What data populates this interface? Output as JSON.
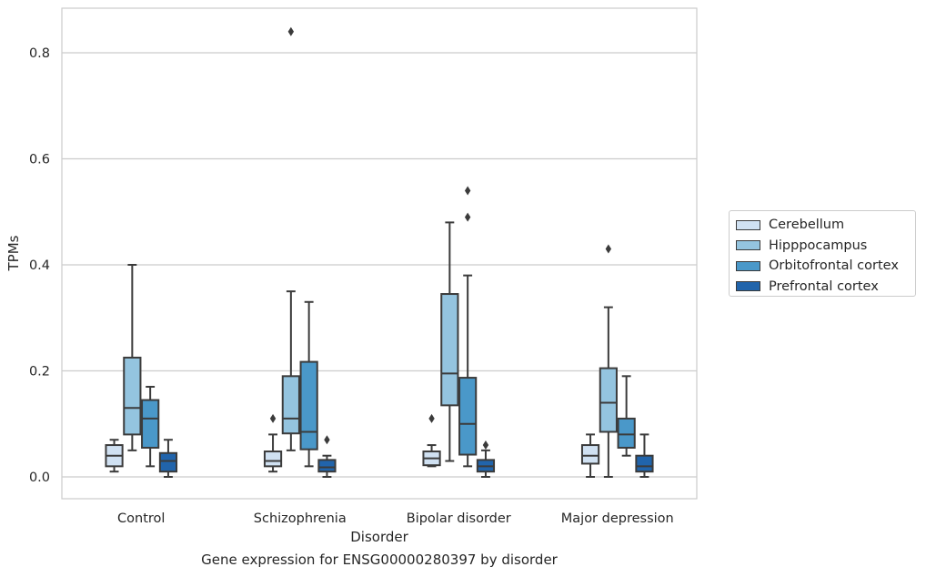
{
  "chart_data": {
    "type": "box",
    "title": "",
    "xlabel": "Disorder",
    "ylabel": "TPMs",
    "caption": "Gene expression for ENSG00000280397 by disorder",
    "ylim": [
      -0.04,
      0.885
    ],
    "yticks": [
      0.0,
      0.2,
      0.4,
      0.6,
      0.8
    ],
    "ytick_labels": [
      "0.0",
      "0.2",
      "0.4",
      "0.6",
      "0.8"
    ],
    "grid": "horizontal",
    "legend_position": "right",
    "categories": [
      "Control",
      "Schizophrenia",
      "Bipolar disorder",
      "Major depression"
    ],
    "series": [
      {
        "name": "Cerebellum",
        "color": "#d0e1f2",
        "boxes": [
          {
            "whisker_low": 0.01,
            "q1": 0.02,
            "median": 0.04,
            "q3": 0.06,
            "whisker_high": 0.07,
            "outliers": []
          },
          {
            "whisker_low": 0.01,
            "q1": 0.02,
            "median": 0.03,
            "q3": 0.048,
            "whisker_high": 0.08,
            "outliers": [
              0.11
            ]
          },
          {
            "whisker_low": 0.02,
            "q1": 0.022,
            "median": 0.035,
            "q3": 0.048,
            "whisker_high": 0.06,
            "outliers": [
              0.11
            ]
          },
          {
            "whisker_low": 0.0,
            "q1": 0.025,
            "median": 0.04,
            "q3": 0.06,
            "whisker_high": 0.08,
            "outliers": []
          }
        ]
      },
      {
        "name": "Hipppocampus",
        "color": "#94c4df",
        "boxes": [
          {
            "whisker_low": 0.05,
            "q1": 0.08,
            "median": 0.13,
            "q3": 0.225,
            "whisker_high": 0.4,
            "outliers": []
          },
          {
            "whisker_low": 0.05,
            "q1": 0.082,
            "median": 0.11,
            "q3": 0.19,
            "whisker_high": 0.35,
            "outliers": [
              0.84
            ]
          },
          {
            "whisker_low": 0.03,
            "q1": 0.135,
            "median": 0.195,
            "q3": 0.345,
            "whisker_high": 0.48,
            "outliers": []
          },
          {
            "whisker_low": 0.0,
            "q1": 0.085,
            "median": 0.14,
            "q3": 0.205,
            "whisker_high": 0.32,
            "outliers": [
              0.43
            ]
          }
        ]
      },
      {
        "name": "Orbitofrontal cortex",
        "color": "#4a98c9",
        "boxes": [
          {
            "whisker_low": 0.02,
            "q1": 0.055,
            "median": 0.11,
            "q3": 0.145,
            "whisker_high": 0.17,
            "outliers": []
          },
          {
            "whisker_low": 0.02,
            "q1": 0.052,
            "median": 0.085,
            "q3": 0.217,
            "whisker_high": 0.33,
            "outliers": []
          },
          {
            "whisker_low": 0.02,
            "q1": 0.042,
            "median": 0.1,
            "q3": 0.187,
            "whisker_high": 0.38,
            "outliers": [
              0.49,
              0.54
            ]
          },
          {
            "whisker_low": 0.04,
            "q1": 0.055,
            "median": 0.08,
            "q3": 0.11,
            "whisker_high": 0.19,
            "outliers": []
          }
        ]
      },
      {
        "name": "Prefrontal cortex",
        "color": "#2164ab",
        "boxes": [
          {
            "whisker_low": 0.0,
            "q1": 0.01,
            "median": 0.03,
            "q3": 0.045,
            "whisker_high": 0.07,
            "outliers": []
          },
          {
            "whisker_low": 0.0,
            "q1": 0.01,
            "median": 0.018,
            "q3": 0.032,
            "whisker_high": 0.04,
            "outliers": [
              0.07
            ]
          },
          {
            "whisker_low": 0.0,
            "q1": 0.01,
            "median": 0.02,
            "q3": 0.032,
            "whisker_high": 0.05,
            "outliers": [
              0.06
            ]
          },
          {
            "whisker_low": 0.0,
            "q1": 0.01,
            "median": 0.02,
            "q3": 0.04,
            "whisker_high": 0.08,
            "outliers": []
          }
        ]
      }
    ]
  }
}
